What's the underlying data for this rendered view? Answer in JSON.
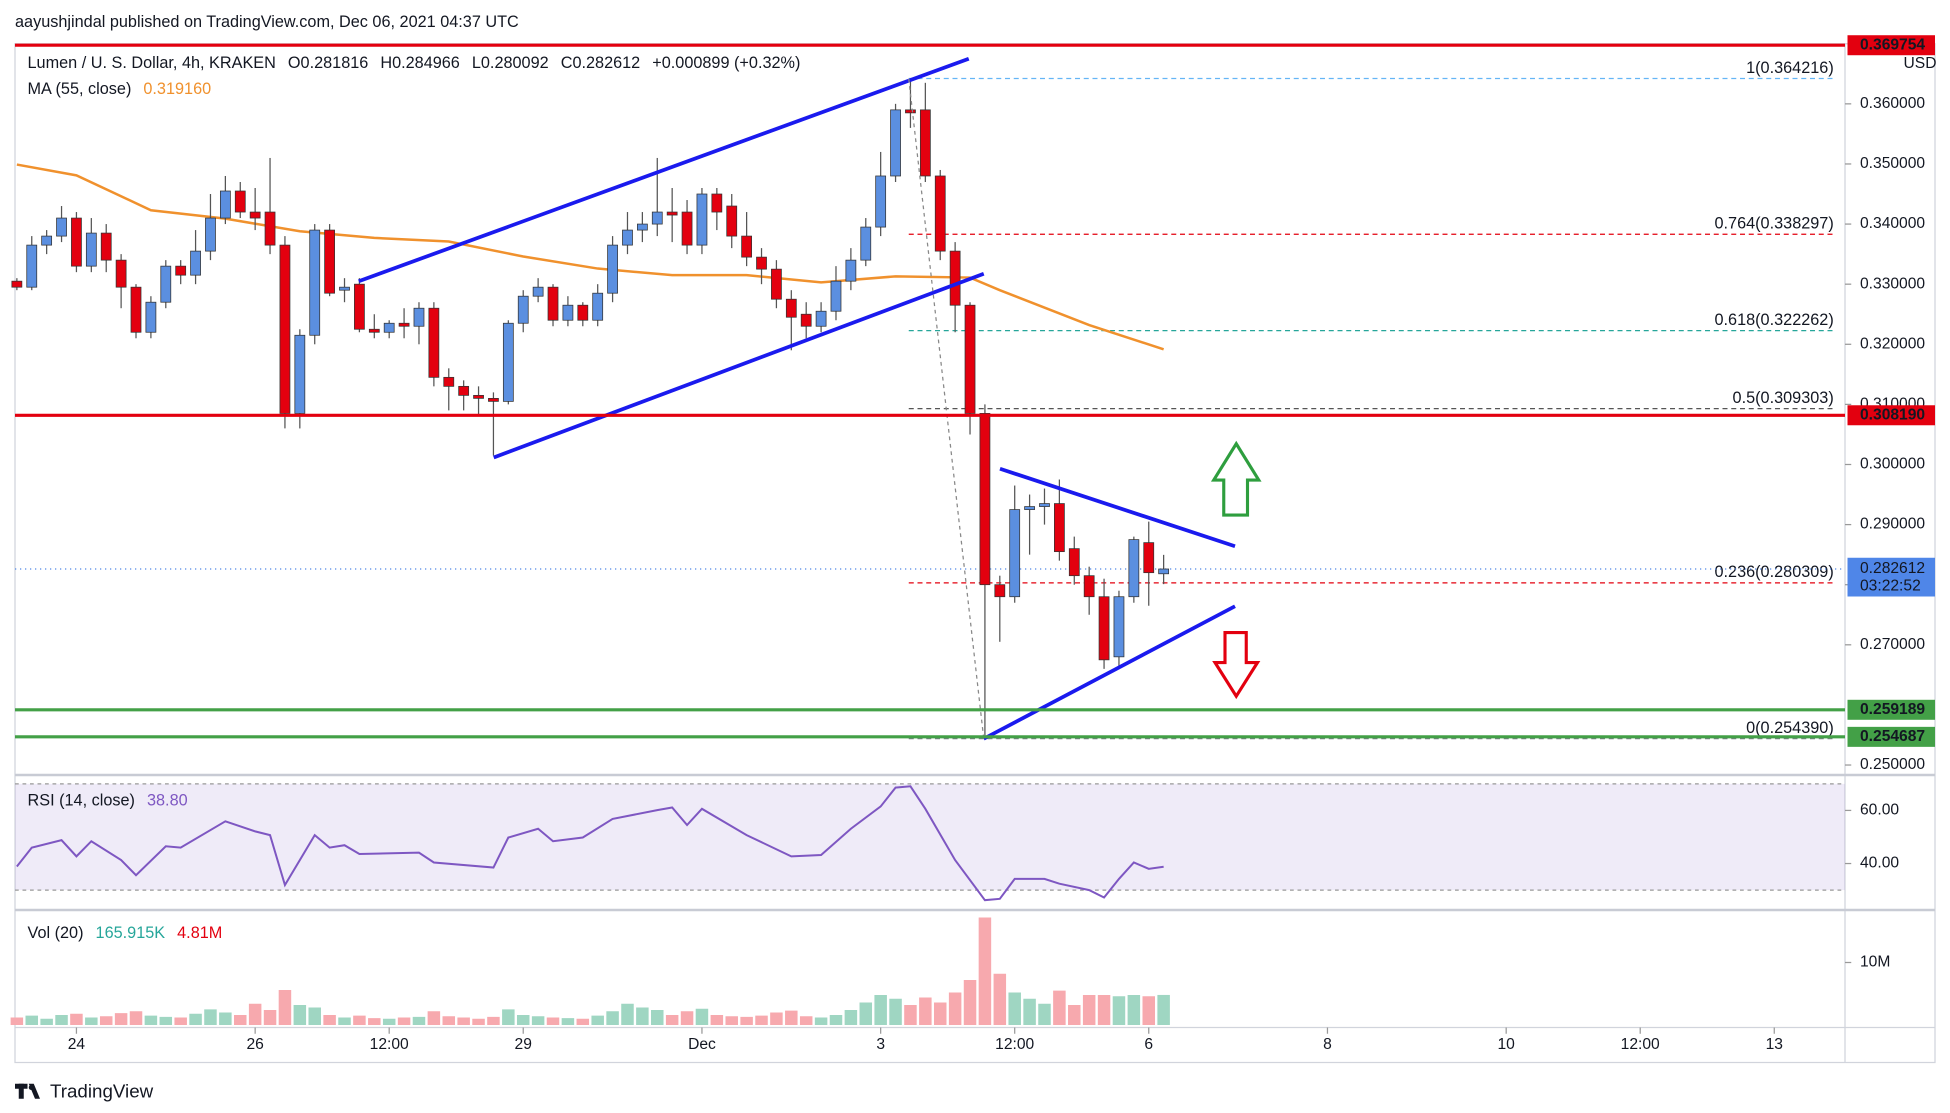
{
  "header": "aayushjindal published on TradingView.com, Dec 06, 2021 04:37 UTC",
  "footer": "TradingView",
  "chart_data": {
    "type": "candlestick",
    "title": "Lumen / U. S. Dollar, 4h, KRAKEN",
    "ohlc_labels": [
      "O0.281816",
      "H0.284966",
      "L0.280092",
      "C0.282612"
    ],
    "change": "+0.000899 (+0.32%)",
    "currency": "USD",
    "up_color": "#5b8fe0",
    "down_color": "#e3000f",
    "xlim": [
      -16.5,
      475
    ],
    "xticks": [
      {
        "value": 0,
        "label": "24"
      },
      {
        "value": 48,
        "label": "26"
      },
      {
        "value": 84,
        "label": "12:00"
      },
      {
        "value": 120,
        "label": "29"
      },
      {
        "value": 168,
        "label": "Dec"
      },
      {
        "value": 216,
        "label": "3"
      },
      {
        "value": 252,
        "label": "12:00"
      },
      {
        "value": 288,
        "label": "6"
      },
      {
        "value": 336,
        "label": "8"
      },
      {
        "value": 384,
        "label": "10"
      },
      {
        "value": 420,
        "label": "12:00"
      },
      {
        "value": 456,
        "label": "13"
      }
    ],
    "ylim": [
      0.24834,
      0.37
    ],
    "yticks": [
      {
        "value": 0.25,
        "label": "0.250000"
      },
      {
        "value": 0.27,
        "label": "0.270000"
      },
      {
        "value": 0.28,
        "label": "0.280000"
      },
      {
        "value": 0.29,
        "label": "0.290000"
      },
      {
        "value": 0.3,
        "label": "0.300000"
      },
      {
        "value": 0.31,
        "label": "0.310000"
      },
      {
        "value": 0.32,
        "label": "0.320000"
      },
      {
        "value": 0.33,
        "label": "0.330000"
      },
      {
        "value": 0.34,
        "label": "0.340000"
      },
      {
        "value": 0.35,
        "label": "0.350000"
      },
      {
        "value": 0.36,
        "label": "0.360000"
      }
    ],
    "x": [
      -16,
      -12,
      -8,
      -4,
      0,
      4,
      8,
      12,
      16,
      20,
      24,
      28,
      32,
      36,
      40,
      44,
      48,
      52,
      56,
      60,
      64,
      68,
      72,
      76,
      80,
      84,
      88,
      92,
      96,
      100,
      104,
      108,
      112,
      116,
      120,
      124,
      128,
      132,
      136,
      140,
      144,
      148,
      152,
      156,
      160,
      164,
      168,
      172,
      176,
      180,
      184,
      188,
      192,
      196,
      200,
      204,
      208,
      212,
      216,
      220,
      224,
      228,
      232,
      236,
      240,
      244,
      248,
      252,
      256,
      260,
      264,
      268,
      272,
      276,
      280,
      284,
      288,
      292
    ],
    "candles": [
      [
        0.3305,
        0.331,
        0.329,
        0.3295
      ],
      [
        0.3295,
        0.338,
        0.329,
        0.3365
      ],
      [
        0.3365,
        0.339,
        0.335,
        0.338
      ],
      [
        0.338,
        0.343,
        0.337,
        0.341
      ],
      [
        0.341,
        0.342,
        0.332,
        0.333
      ],
      [
        0.333,
        0.341,
        0.332,
        0.3385
      ],
      [
        0.3385,
        0.34,
        0.332,
        0.334
      ],
      [
        0.334,
        0.335,
        0.326,
        0.3295
      ],
      [
        0.3295,
        0.33,
        0.321,
        0.322
      ],
      [
        0.322,
        0.328,
        0.321,
        0.327
      ],
      [
        0.327,
        0.334,
        0.326,
        0.333
      ],
      [
        0.333,
        0.334,
        0.33,
        0.3315
      ],
      [
        0.3315,
        0.339,
        0.33,
        0.3355
      ],
      [
        0.3355,
        0.345,
        0.334,
        0.341
      ],
      [
        0.341,
        0.348,
        0.34,
        0.3455
      ],
      [
        0.3455,
        0.347,
        0.341,
        0.342
      ],
      [
        0.342,
        0.346,
        0.339,
        0.341
      ],
      [
        0.342,
        0.351,
        0.335,
        0.3365
      ],
      [
        0.3365,
        0.338,
        0.306,
        0.3085
      ],
      [
        0.3085,
        0.3225,
        0.306,
        0.3215
      ],
      [
        0.3215,
        0.34,
        0.32,
        0.339
      ],
      [
        0.339,
        0.34,
        0.328,
        0.3285
      ],
      [
        0.329,
        0.331,
        0.327,
        0.3295
      ],
      [
        0.33,
        0.331,
        0.322,
        0.3225
      ],
      [
        0.3225,
        0.325,
        0.321,
        0.322
      ],
      [
        0.322,
        0.324,
        0.321,
        0.3235
      ],
      [
        0.3235,
        0.326,
        0.321,
        0.323
      ],
      [
        0.323,
        0.327,
        0.32,
        0.326
      ],
      [
        0.326,
        0.327,
        0.313,
        0.3145
      ],
      [
        0.3145,
        0.316,
        0.309,
        0.313
      ],
      [
        0.313,
        0.314,
        0.309,
        0.3115
      ],
      [
        0.3115,
        0.313,
        0.308,
        0.311
      ],
      [
        0.311,
        0.312,
        0.3015,
        0.3105
      ],
      [
        0.3105,
        0.324,
        0.31,
        0.3235
      ],
      [
        0.3235,
        0.329,
        0.322,
        0.328
      ],
      [
        0.328,
        0.331,
        0.327,
        0.3295
      ],
      [
        0.3295,
        0.33,
        0.323,
        0.324
      ],
      [
        0.324,
        0.328,
        0.323,
        0.3265
      ],
      [
        0.3265,
        0.327,
        0.323,
        0.324
      ],
      [
        0.324,
        0.33,
        0.323,
        0.3285
      ],
      [
        0.3285,
        0.338,
        0.327,
        0.3365
      ],
      [
        0.3365,
        0.342,
        0.335,
        0.339
      ],
      [
        0.339,
        0.342,
        0.337,
        0.34
      ],
      [
        0.34,
        0.351,
        0.338,
        0.342
      ],
      [
        0.342,
        0.346,
        0.337,
        0.3415
      ],
      [
        0.342,
        0.344,
        0.335,
        0.3365
      ],
      [
        0.3365,
        0.346,
        0.335,
        0.345
      ],
      [
        0.345,
        0.346,
        0.339,
        0.342
      ],
      [
        0.343,
        0.345,
        0.336,
        0.338
      ],
      [
        0.338,
        0.342,
        0.333,
        0.3345
      ],
      [
        0.3345,
        0.336,
        0.33,
        0.3325
      ],
      [
        0.3325,
        0.334,
        0.326,
        0.3275
      ],
      [
        0.3275,
        0.329,
        0.319,
        0.3245
      ],
      [
        0.325,
        0.327,
        0.321,
        0.323
      ],
      [
        0.323,
        0.327,
        0.322,
        0.3255
      ],
      [
        0.3255,
        0.333,
        0.324,
        0.3305
      ],
      [
        0.3305,
        0.336,
        0.329,
        0.334
      ],
      [
        0.334,
        0.341,
        0.333,
        0.3395
      ],
      [
        0.3395,
        0.352,
        0.338,
        0.348
      ],
      [
        0.348,
        0.36,
        0.347,
        0.359
      ],
      [
        0.359,
        0.3642,
        0.356,
        0.3585
      ],
      [
        0.359,
        0.3635,
        0.347,
        0.348
      ],
      [
        0.348,
        0.349,
        0.334,
        0.3355
      ],
      [
        0.3355,
        0.337,
        0.322,
        0.3265
      ],
      [
        0.3265,
        0.327,
        0.305,
        0.3085
      ],
      [
        0.3085,
        0.31,
        0.2544,
        0.28
      ],
      [
        0.28,
        0.2815,
        0.2705,
        0.278
      ],
      [
        0.278,
        0.2965,
        0.277,
        0.2925
      ],
      [
        0.2925,
        0.295,
        0.285,
        0.293
      ],
      [
        0.293,
        0.296,
        0.29,
        0.2935
      ],
      [
        0.2935,
        0.2975,
        0.284,
        0.2855
      ],
      [
        0.286,
        0.288,
        0.28,
        0.2815
      ],
      [
        0.2815,
        0.283,
        0.275,
        0.278
      ],
      [
        0.278,
        0.281,
        0.266,
        0.2675
      ],
      [
        0.268,
        0.279,
        0.2665,
        0.278
      ],
      [
        0.278,
        0.288,
        0.277,
        0.2875
      ],
      [
        0.287,
        0.2905,
        0.2765,
        0.282
      ],
      [
        0.281816,
        0.284966,
        0.280092,
        0.282612
      ]
    ],
    "ma": {
      "name": "MA (55, close)",
      "legend_value": "0.319160",
      "color": "#f0912d",
      "x": [
        -16,
        0,
        20,
        40,
        60,
        80,
        100,
        120,
        140,
        160,
        180,
        200,
        220,
        240,
        248,
        272,
        292
      ],
      "values": [
        0.3499,
        0.3481,
        0.3423,
        0.3409,
        0.3388,
        0.3377,
        0.3371,
        0.3346,
        0.3326,
        0.3315,
        0.3315,
        0.3303,
        0.3313,
        0.3311,
        0.329,
        0.3232,
        0.31916
      ]
    },
    "levels": [
      {
        "value": 0.369754,
        "label": "0.369754",
        "color": "#e3000f"
      },
      {
        "value": 0.30819,
        "label": "0.308190",
        "color": "#e3000f"
      },
      {
        "value": 0.259189,
        "label": "0.259189",
        "color": "#43a047"
      },
      {
        "value": 0.254687,
        "label": "0.254687",
        "color": "#43a047"
      }
    ],
    "fib": [
      {
        "value": 0.364216,
        "label": "1(0.364216)",
        "color": "#64b5f6"
      },
      {
        "value": 0.338297,
        "label": "0.764(0.338297)",
        "color": "#e3000f"
      },
      {
        "value": 0.322262,
        "label": "0.618(0.322262)",
        "color": "#26a69a"
      },
      {
        "value": 0.309303,
        "label": "0.5(0.309303)",
        "color": "#555555"
      },
      {
        "value": 0.280309,
        "label": "0.236(0.280309)",
        "color": "#e3000f"
      },
      {
        "value": 0.25439,
        "label": "0(0.254390)",
        "color": "#787b86"
      }
    ],
    "last_price": {
      "value": 0.282612,
      "label": "0.282612",
      "countdown": "03:22:52",
      "color": "#4f86e8"
    },
    "rsi": {
      "name": "RSI (14, close)",
      "legend_value": "38.80",
      "color": "#7e57c2",
      "ylim": [
        22.5,
        72.4
      ],
      "band": [
        30,
        70
      ],
      "yticks": [
        {
          "value": 40,
          "label": "40.00"
        },
        {
          "value": 60,
          "label": "60.00"
        }
      ],
      "x": [
        -16,
        -12,
        -4,
        0,
        4,
        12,
        16,
        24,
        28,
        40,
        48,
        52,
        56,
        64,
        68,
        72,
        76,
        92,
        96,
        112,
        116,
        124,
        128,
        136,
        144,
        156,
        160,
        164,
        168,
        180,
        192,
        200,
        208,
        216,
        220,
        224,
        228,
        236,
        244,
        248,
        252,
        260,
        264,
        272,
        276,
        280,
        284,
        288,
        292
      ],
      "values": [
        38.9,
        46,
        48.8,
        42.7,
        48.4,
        41.3,
        35.6,
        46.5,
        46,
        55.9,
        52.1,
        50.7,
        31.9,
        50.7,
        46,
        46.9,
        43.6,
        44.1,
        40.4,
        38.5,
        49.8,
        53.1,
        48.4,
        49.8,
        56.8,
        60.1,
        61.1,
        54.5,
        60.6,
        50.7,
        42.7,
        43.2,
        53.1,
        61.5,
        68.6,
        69.1,
        60.6,
        41.3,
        26.2,
        26.7,
        34.2,
        34.2,
        32.4,
        30,
        27.2,
        34.2,
        40.4,
        38,
        38.8
      ]
    },
    "volume": {
      "name": "Vol (20)",
      "legend_values": [
        "165.915K",
        "4.81M"
      ],
      "up_color": "#9fd6c2",
      "down_color": "#f7a9ae",
      "ylim": [
        0,
        18
      ],
      "yticks": [
        {
          "value": 10,
          "label": "10M"
        }
      ],
      "values": [
        1.2,
        1.5,
        1.0,
        1.6,
        1.8,
        1.2,
        1.4,
        1.9,
        2.2,
        1.5,
        1.3,
        1.2,
        1.8,
        2.5,
        2.0,
        1.6,
        3.4,
        2.4,
        5.6,
        3.2,
        2.8,
        1.6,
        1.2,
        1.5,
        1.1,
        1.0,
        1.2,
        1.3,
        2.2,
        1.4,
        1.2,
        1.0,
        1.3,
        2.5,
        1.6,
        1.4,
        1.2,
        1.1,
        1.0,
        1.5,
        2.2,
        3.4,
        2.8,
        2.4,
        1.6,
        2.2,
        2.6,
        1.6,
        1.4,
        1.3,
        1.5,
        2.0,
        2.3,
        1.4,
        1.2,
        1.6,
        2.4,
        3.6,
        4.8,
        4.2,
        3.2,
        4.4,
        3.6,
        5.2,
        7.2,
        17.2,
        8.2,
        5.2,
        4.2,
        3.4,
        5.5,
        3.2,
        4.8,
        4.8,
        4.6,
        4.8,
        4.6,
        4.81
      ]
    }
  }
}
